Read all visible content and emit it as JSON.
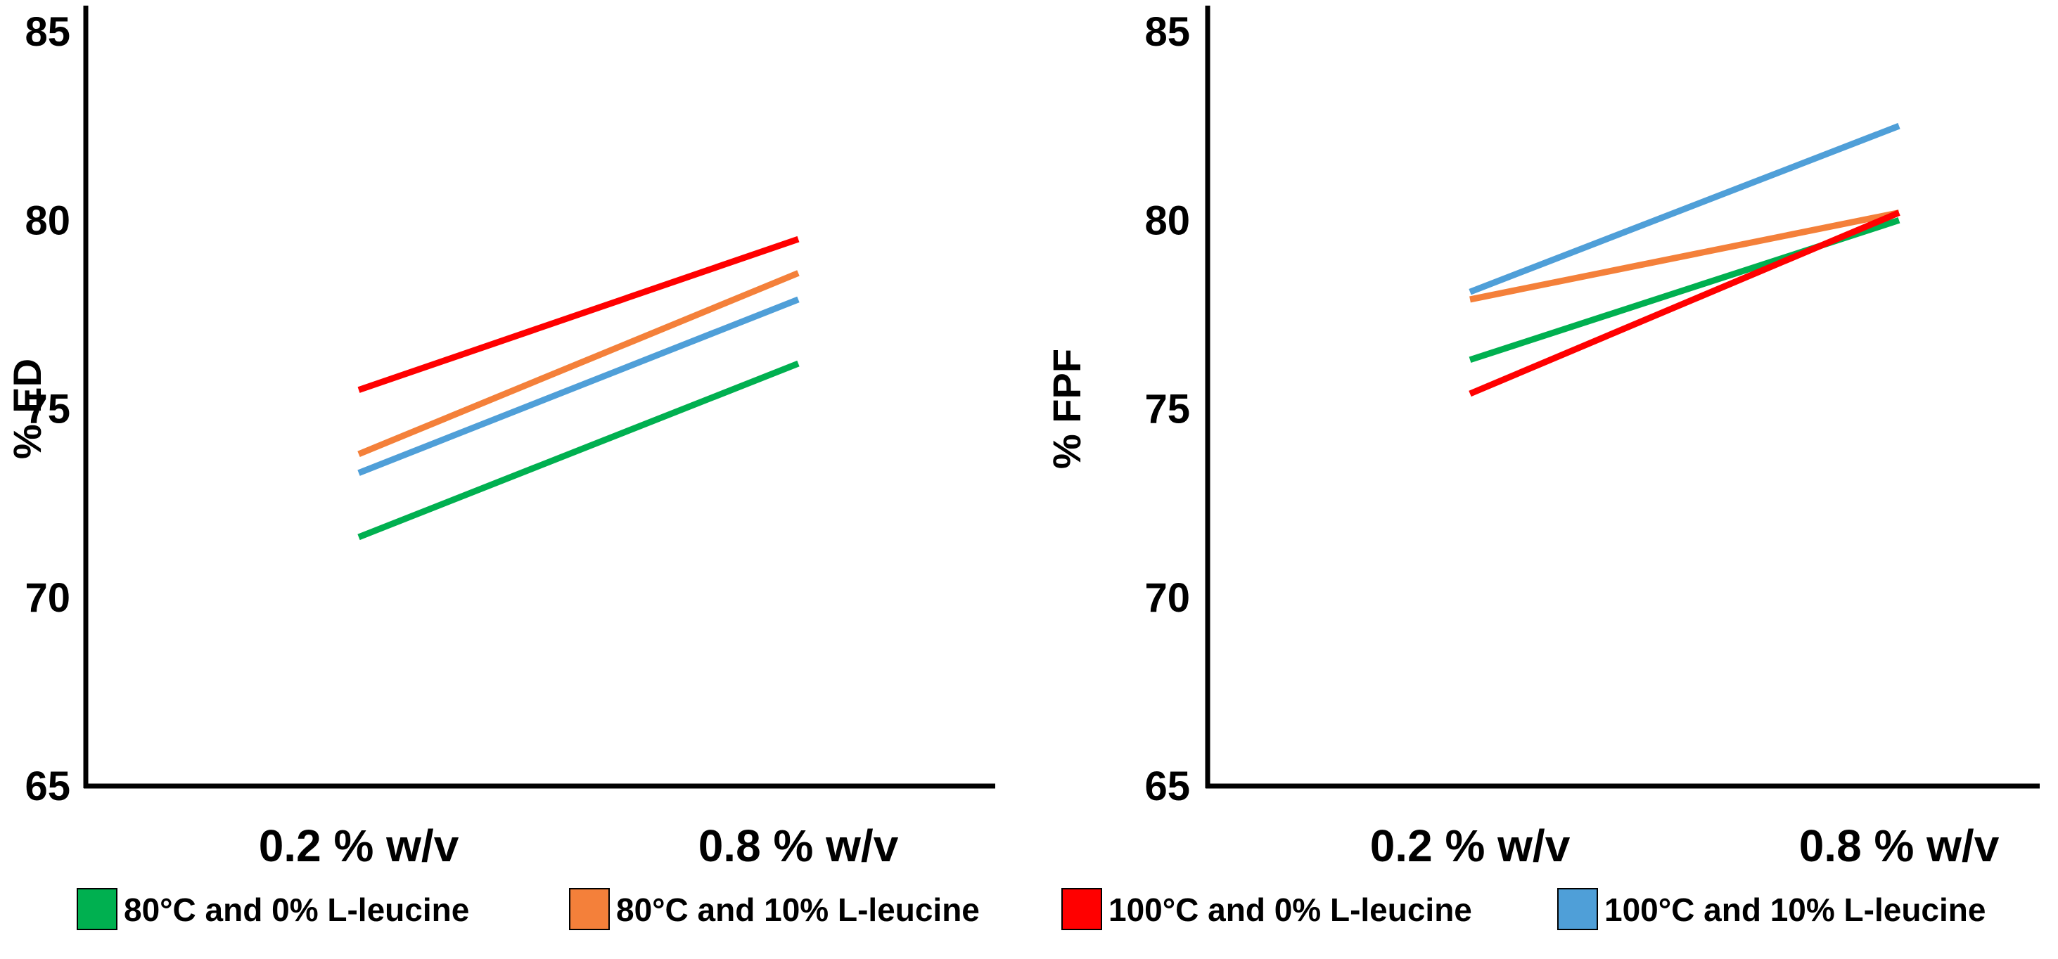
{
  "chart_data": [
    {
      "type": "line",
      "title": "",
      "xlabel": "",
      "ylabel": "% ED",
      "categories": [
        "0.2 % w/v",
        "0.8 % w/v"
      ],
      "ylim": [
        65,
        85
      ],
      "yticks": [
        65,
        70,
        75,
        80,
        85
      ],
      "grid": false,
      "series": [
        {
          "name": "80°C and 0% L-leucine",
          "color": "#00b050",
          "values": [
            71.6,
            76.2
          ]
        },
        {
          "name": "80°C and 10% L-leucine",
          "color": "#f4803a",
          "values": [
            73.8,
            78.6
          ]
        },
        {
          "name": "100°C and 0% L-leucine",
          "color": "#ff0000",
          "values": [
            75.5,
            79.5
          ]
        },
        {
          "name": "100°C and 10% L-leucine",
          "color": "#4f9fd8",
          "values": [
            73.3,
            77.9
          ]
        }
      ]
    },
    {
      "type": "line",
      "title": "",
      "xlabel": "",
      "ylabel": "% FPF",
      "categories": [
        "0.2 % w/v",
        "0.8 % w/v"
      ],
      "ylim": [
        65,
        85
      ],
      "yticks": [
        65,
        70,
        75,
        80,
        85
      ],
      "grid": false,
      "series": [
        {
          "name": "80°C and 0% L-leucine",
          "color": "#00b050",
          "values": [
            76.3,
            80.0
          ]
        },
        {
          "name": "80°C and 10% L-leucine",
          "color": "#f4803a",
          "values": [
            77.9,
            80.2
          ]
        },
        {
          "name": "100°C and 0% L-leucine",
          "color": "#ff0000",
          "values": [
            75.4,
            80.2
          ]
        },
        {
          "name": "100°C and 10% L-leucine",
          "color": "#4f9fd8",
          "values": [
            78.1,
            82.5
          ]
        }
      ]
    }
  ],
  "legend": {
    "position": "bottom",
    "items": [
      {
        "label": "80°C and 0% L-leucine",
        "color": "#00b050"
      },
      {
        "label": "80°C and 10% L-leucine",
        "color": "#f4803a"
      },
      {
        "label": "100°C and 0% L-leucine",
        "color": "#ff0000"
      },
      {
        "label": "100°C and 10% L-leucine",
        "color": "#4f9fd8"
      }
    ]
  }
}
